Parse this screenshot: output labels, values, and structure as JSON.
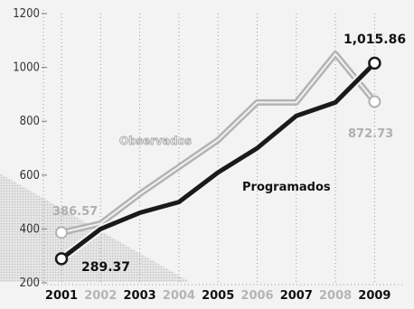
{
  "chart_data": {
    "type": "line",
    "title": "",
    "xlabel": "",
    "ylabel": "",
    "x": [
      "2001",
      "2002",
      "2003",
      "2004",
      "2005",
      "2006",
      "2007",
      "2008",
      "2009"
    ],
    "x_highlight": [
      true,
      false,
      true,
      false,
      true,
      false,
      true,
      false,
      true
    ],
    "yticks": [
      "200",
      "400",
      "600",
      "800",
      "1000",
      "1200"
    ],
    "ylim": [
      200,
      1200
    ],
    "grid": "vertical-dotted",
    "series": [
      {
        "name": "Observados",
        "color": "#b3b3b3",
        "values": [
          386.57,
          420,
          530,
          630,
          730,
          870,
          870,
          1050,
          872.73
        ],
        "start_label": "386.57",
        "end_label": "872.73"
      },
      {
        "name": "Programados",
        "color": "#1a1a1a",
        "values": [
          289.37,
          400,
          460,
          500,
          610,
          700,
          820,
          870,
          1015.86
        ],
        "start_label": "289.37",
        "end_label": "1,015.86"
      }
    ]
  }
}
